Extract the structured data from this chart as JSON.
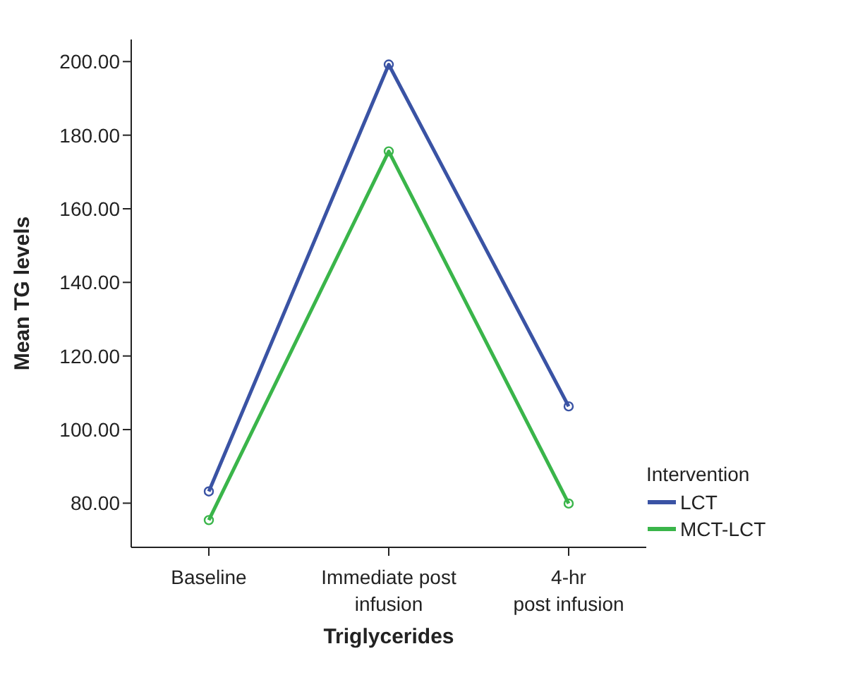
{
  "chart_data": {
    "type": "line",
    "xlabel": "Triglycerides",
    "ylabel": "Mean TG levels",
    "legend_title": "Intervention",
    "categories": [
      "Baseline",
      "Immediate post\ninfusion",
      "4-hr\npost infusion"
    ],
    "series": [
      {
        "name": "LCT",
        "color": "#3a53a4",
        "values": [
          83.2,
          199.2,
          106.3
        ]
      },
      {
        "name": "MCT-LCT",
        "color": "#3ab54a",
        "values": [
          75.4,
          175.6,
          79.9
        ]
      }
    ],
    "ylim": [
      68,
      206
    ],
    "yticks": [
      {
        "value": 80,
        "label": "80.00"
      },
      {
        "value": 100,
        "label": "100.00"
      },
      {
        "value": 120,
        "label": "120.00"
      },
      {
        "value": 140,
        "label": "140.00"
      },
      {
        "value": 160,
        "label": "160.00"
      },
      {
        "value": 180,
        "label": "180.00"
      },
      {
        "value": 200,
        "label": "200.00"
      }
    ],
    "grid": false,
    "legend": "right",
    "marker": "circle",
    "line_style": "solid"
  }
}
